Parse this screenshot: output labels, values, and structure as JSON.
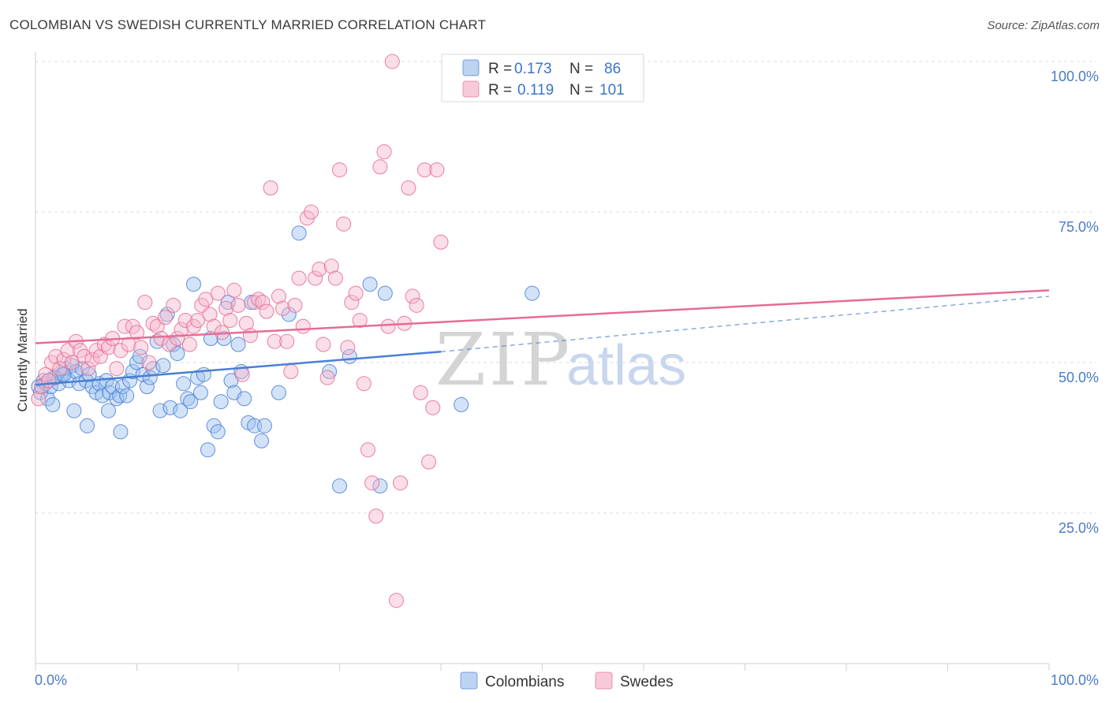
{
  "header": {
    "title": "COLOMBIAN VS SWEDISH CURRENTLY MARRIED CORRELATION CHART",
    "source": "Source: ZipAtlas.com"
  },
  "watermark": {
    "zip": "ZIP",
    "atlas": "atlas"
  },
  "legend_top": {
    "rows": [
      {
        "r_label": "R =",
        "r_value": "0.173",
        "n_label": "N =",
        "n_value": "86",
        "color": "#8fb5ea"
      },
      {
        "r_label": "R =",
        "r_value": "0.119",
        "n_label": "N =",
        "n_value": "101",
        "color": "#f4a6bf"
      }
    ]
  },
  "legend_bottom": {
    "items": [
      "Colombians",
      "Swedes"
    ]
  },
  "chart_data": {
    "type": "scatter",
    "ylabel": "Currently Married",
    "xlim": [
      0,
      100
    ],
    "ylim": [
      0,
      100
    ],
    "x_tick_labels": [
      "0.0%",
      "100.0%"
    ],
    "y_ticks": [
      {
        "value": 100,
        "label": "100.0%"
      },
      {
        "value": 75,
        "label": "75.0%"
      },
      {
        "value": 50,
        "label": "50.0%"
      },
      {
        "value": 25,
        "label": "25.0%"
      }
    ],
    "grid": true,
    "legend_position": "top-center",
    "series": [
      {
        "name": "Colombians",
        "color": "#4a7fd4",
        "fill": "#9ec0ee",
        "trend": {
          "x0": 0,
          "y0": 46.3,
          "x1": 40,
          "y1": 51.8,
          "dash_to_x": 100,
          "dash_to_y": 61.0
        },
        "points": [
          [
            0.3,
            46
          ],
          [
            0.5,
            45
          ],
          [
            0.8,
            47
          ],
          [
            1,
            46.5
          ],
          [
            1.2,
            44
          ],
          [
            1.5,
            46
          ],
          [
            1.7,
            43
          ],
          [
            2,
            47.5
          ],
          [
            2.3,
            46.5
          ],
          [
            2.6,
            48
          ],
          [
            3,
            49
          ],
          [
            3.3,
            47
          ],
          [
            3.6,
            49.5
          ],
          [
            4,
            48.5
          ],
          [
            4.3,
            46.5
          ],
          [
            4.6,
            49
          ],
          [
            5,
            47
          ],
          [
            5.3,
            48
          ],
          [
            5.6,
            46
          ],
          [
            6,
            45
          ],
          [
            6.3,
            46.5
          ],
          [
            6.6,
            44.5
          ],
          [
            7,
            47
          ],
          [
            7.3,
            45
          ],
          [
            7.6,
            46
          ],
          [
            8,
            44
          ],
          [
            8.3,
            44.5
          ],
          [
            8.6,
            46
          ],
          [
            9,
            44.5
          ],
          [
            9.3,
            47
          ],
          [
            9.6,
            48.5
          ],
          [
            10,
            50
          ],
          [
            10.3,
            51
          ],
          [
            10.6,
            48
          ],
          [
            11,
            46
          ],
          [
            11.3,
            47.5
          ],
          [
            11.6,
            49
          ],
          [
            12,
            53.5
          ],
          [
            12.3,
            42
          ],
          [
            12.6,
            49.5
          ],
          [
            13,
            58
          ],
          [
            13.3,
            42.5
          ],
          [
            13.6,
            53
          ],
          [
            14,
            51.5
          ],
          [
            14.3,
            42
          ],
          [
            14.6,
            46.5
          ],
          [
            15,
            44
          ],
          [
            15.3,
            43.5
          ],
          [
            15.6,
            63
          ],
          [
            16,
            47.5
          ],
          [
            16.3,
            45
          ],
          [
            16.6,
            48
          ],
          [
            17,
            35.5
          ],
          [
            17.3,
            54
          ],
          [
            17.6,
            39.5
          ],
          [
            18,
            38.5
          ],
          [
            18.3,
            43.5
          ],
          [
            18.6,
            54
          ],
          [
            19,
            60
          ],
          [
            19.3,
            47
          ],
          [
            19.6,
            45
          ],
          [
            20,
            53
          ],
          [
            20.3,
            48.5
          ],
          [
            20.6,
            44
          ],
          [
            21,
            40
          ],
          [
            21.3,
            60
          ],
          [
            21.6,
            39.5
          ],
          [
            22.3,
            37
          ],
          [
            22.6,
            39.5
          ],
          [
            24,
            45
          ],
          [
            25,
            58
          ],
          [
            3.8,
            42
          ],
          [
            5.1,
            39.5
          ],
          [
            7.2,
            42
          ],
          [
            8.4,
            38.5
          ],
          [
            26,
            71.5
          ],
          [
            29,
            48.5
          ],
          [
            30,
            29.5
          ],
          [
            31,
            51
          ],
          [
            33,
            63
          ],
          [
            34,
            29.5
          ],
          [
            34.5,
            61.5
          ],
          [
            42,
            43
          ],
          [
            49,
            61.5
          ],
          [
            1.8,
            47.5
          ],
          [
            2.8,
            48
          ]
        ]
      },
      {
        "name": "Swedes",
        "color": "#e66c95",
        "fill": "#f7b9cd",
        "trend": {
          "x0": 0,
          "y0": 53.2,
          "x1": 100,
          "y1": 62.0
        },
        "points": [
          [
            0.3,
            44
          ],
          [
            0.6,
            46
          ],
          [
            1,
            48
          ],
          [
            1.3,
            47
          ],
          [
            1.6,
            50
          ],
          [
            2,
            51
          ],
          [
            2.4,
            49
          ],
          [
            2.8,
            50.5
          ],
          [
            3.2,
            52
          ],
          [
            3.6,
            50
          ],
          [
            4,
            53.5
          ],
          [
            4.4,
            52
          ],
          [
            4.8,
            51
          ],
          [
            5.2,
            49
          ],
          [
            5.6,
            50.5
          ],
          [
            6,
            52
          ],
          [
            6.4,
            51
          ],
          [
            6.8,
            53
          ],
          [
            7.2,
            52.5
          ],
          [
            7.6,
            54
          ],
          [
            8,
            49
          ],
          [
            8.4,
            52
          ],
          [
            8.8,
            56
          ],
          [
            9.2,
            53
          ],
          [
            9.6,
            56
          ],
          [
            10,
            55
          ],
          [
            10.4,
            52.5
          ],
          [
            10.8,
            60
          ],
          [
            11.2,
            50
          ],
          [
            11.6,
            56.5
          ],
          [
            12,
            56
          ],
          [
            12.4,
            54
          ],
          [
            12.8,
            57.5
          ],
          [
            13.2,
            53
          ],
          [
            13.6,
            59.5
          ],
          [
            14,
            54
          ],
          [
            14.4,
            55.5
          ],
          [
            14.8,
            57
          ],
          [
            15.2,
            53
          ],
          [
            15.6,
            56
          ],
          [
            16,
            57
          ],
          [
            16.4,
            59.5
          ],
          [
            16.8,
            60.5
          ],
          [
            17.2,
            58
          ],
          [
            17.6,
            56
          ],
          [
            18,
            61.5
          ],
          [
            18.4,
            55
          ],
          [
            18.8,
            59
          ],
          [
            19.2,
            57
          ],
          [
            19.6,
            62
          ],
          [
            20,
            59.5
          ],
          [
            20.4,
            48
          ],
          [
            20.8,
            56.5
          ],
          [
            21.2,
            54.5
          ],
          [
            21.6,
            60
          ],
          [
            22,
            60.5
          ],
          [
            22.4,
            60
          ],
          [
            22.8,
            58.5
          ],
          [
            23.2,
            79
          ],
          [
            23.6,
            53.5
          ],
          [
            24,
            61
          ],
          [
            24.4,
            59
          ],
          [
            24.8,
            53.5
          ],
          [
            25.2,
            48.5
          ],
          [
            25.6,
            59.5
          ],
          [
            26,
            64
          ],
          [
            26.4,
            56
          ],
          [
            26.8,
            74
          ],
          [
            27.2,
            75
          ],
          [
            27.6,
            64
          ],
          [
            28,
            65.5
          ],
          [
            28.4,
            53
          ],
          [
            28.8,
            47.5
          ],
          [
            29.2,
            66
          ],
          [
            29.6,
            64
          ],
          [
            30,
            82
          ],
          [
            30.4,
            73
          ],
          [
            30.8,
            52.5
          ],
          [
            31.2,
            60
          ],
          [
            31.6,
            61.5
          ],
          [
            32,
            57
          ],
          [
            32.4,
            46.5
          ],
          [
            32.8,
            35.5
          ],
          [
            33.2,
            30
          ],
          [
            33.6,
            24.5
          ],
          [
            34,
            82.5
          ],
          [
            34.4,
            85
          ],
          [
            34.8,
            56
          ],
          [
            35.2,
            100
          ],
          [
            35.6,
            10.5
          ],
          [
            36,
            30
          ],
          [
            36.4,
            56.5
          ],
          [
            36.8,
            79
          ],
          [
            37.2,
            61
          ],
          [
            37.6,
            59.5
          ],
          [
            38,
            45
          ],
          [
            38.4,
            82
          ],
          [
            38.8,
            33.5
          ],
          [
            39.2,
            42.5
          ],
          [
            39.6,
            82
          ],
          [
            40,
            70
          ]
        ]
      }
    ]
  }
}
